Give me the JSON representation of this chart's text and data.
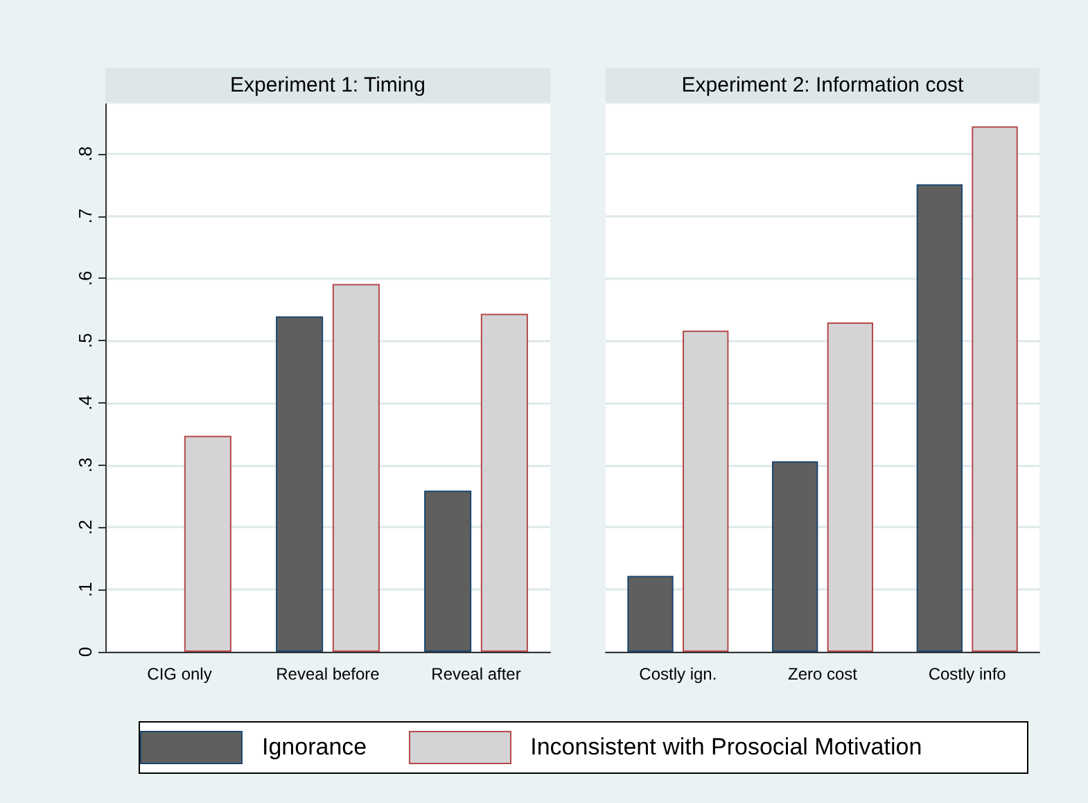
{
  "chart_data": [
    {
      "type": "bar",
      "title": "Experiment 1: Timing",
      "categories": [
        "CIG only",
        "Reveal before",
        "Reveal after"
      ],
      "series": [
        {
          "name": "Ignorance",
          "color": "#5f5f5f",
          "values": [
            null,
            0.539,
            0.259
          ]
        },
        {
          "name": "Inconsistent with Prosocial Motivation",
          "color": "#d4d4d4",
          "values": [
            0.347,
            0.591,
            0.543
          ]
        }
      ],
      "ylim": [
        0,
        0.88
      ],
      "yticks": [
        0,
        {
          "value": 0.1,
          "label": ".1"
        },
        {
          "value": 0.2,
          "label": ".2"
        },
        {
          "value": 0.3,
          "label": ".3"
        },
        {
          "value": 0.4,
          "label": ".4"
        },
        {
          "value": 0.5,
          "label": ".5"
        },
        {
          "value": 0.6,
          "label": ".6"
        },
        {
          "value": 0.7,
          "label": ".7"
        },
        {
          "value": 0.8,
          "label": ".8"
        }
      ],
      "grid": "y",
      "legend": "bottom"
    },
    {
      "type": "bar",
      "title": "Experiment 2: Information cost",
      "categories": [
        "Costly ign.",
        "Zero cost",
        "Costly info"
      ],
      "series": [
        {
          "name": "Ignorance",
          "color": "#5f5f5f",
          "values": [
            0.122,
            0.306,
            0.751
          ]
        },
        {
          "name": "Inconsistent with Prosocial Motivation",
          "color": "#d4d4d4",
          "values": [
            0.516,
            0.529,
            0.844
          ]
        }
      ],
      "ylim": [
        0,
        0.88
      ],
      "yticks": [
        0,
        0.1,
        0.2,
        0.3,
        0.4,
        0.5,
        0.6,
        0.7,
        0.8
      ],
      "grid": "y",
      "tick_labels": "x",
      "legend": "bottom"
    }
  ]
}
